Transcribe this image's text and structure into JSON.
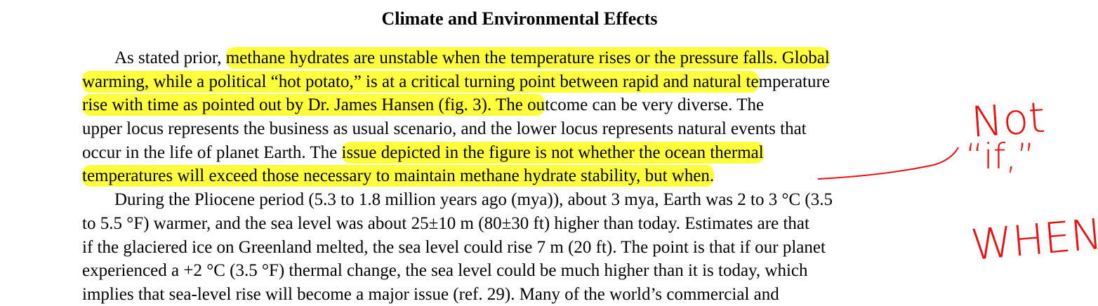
{
  "title": "Climate and Environmental Effects",
  "lines": [
    {
      "indent": true,
      "segments": [
        {
          "text": "As stated prior, ",
          "highlight": false
        },
        {
          "text": "methane hydrates are unstable when the temperature rises or the pressure falls. Global",
          "highlight": true
        }
      ]
    },
    {
      "indent": false,
      "segments": [
        {
          "text": "warming, while a political “hot potato,” is at a critical turning point between rapid and natural te",
          "highlight": true
        },
        {
          "text": "mperature",
          "highlight": false
        }
      ]
    },
    {
      "indent": false,
      "segments": [
        {
          "text": "rise with time as pointed out by Dr. James Hansen (fig. 3). The ou",
          "highlight": true
        },
        {
          "text": "tcome can be very diverse. The",
          "highlight": false
        }
      ]
    },
    {
      "indent": false,
      "segments": [
        {
          "text": "upper locus represents the business as usual scenario, and the lower locus represents natural events that",
          "highlight": false
        }
      ]
    },
    {
      "indent": false,
      "segments": [
        {
          "text": "occur in the life of planet Earth. The ",
          "highlight": false
        },
        {
          "text": "issue depicted in the figure is not whether the ocean thermal",
          "highlight": true
        }
      ]
    },
    {
      "indent": false,
      "segments": [
        {
          "text": "temperatures will exceed those necessary to maintain methane hydrate stability, but when.",
          "highlight": true
        }
      ]
    },
    {
      "indent": true,
      "segments": [
        {
          "text": "During the Pliocene period (5.3 to 1.8 million years ago (mya)), about 3 mya, Earth was 2 to 3 °C (3.5",
          "highlight": false
        }
      ]
    },
    {
      "indent": false,
      "segments": [
        {
          "text": "to 5.5 °F) warmer, and the sea level was about 25±10 m (80±30 ft) higher than today. Estimates are that",
          "highlight": false
        }
      ]
    },
    {
      "indent": false,
      "segments": [
        {
          "text": "if the glaciered ice on Greenland melted, the sea level could rise 7 m (20 ft). The point is that if our planet",
          "highlight": false
        }
      ]
    },
    {
      "indent": false,
      "segments": [
        {
          "text": "experienced a +2 °C (3.5 °F) thermal change, the sea level could be much higher than it is today, which",
          "highlight": false
        }
      ]
    },
    {
      "indent": false,
      "segments": [
        {
          "text": "implies that sea-level rise will become a major issue (ref. 29). Many of the world’s commercial and",
          "highlight": false
        }
      ]
    }
  ],
  "annotations": [
    "Not",
    "“if,”",
    "WHEN"
  ]
}
